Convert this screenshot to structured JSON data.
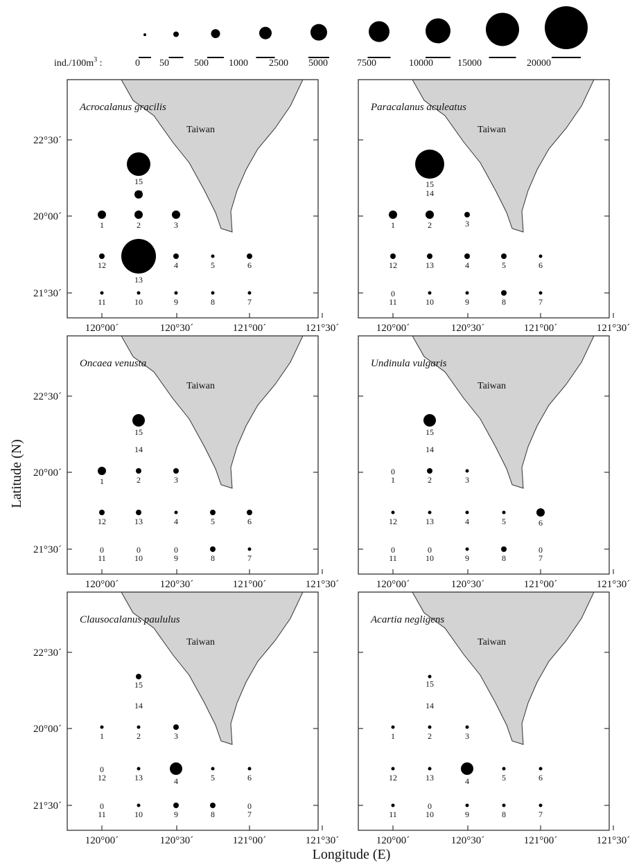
{
  "chart_data": {
    "type": "scatter",
    "legend": {
      "unit_label": "ind./100m",
      "unit_superscript": "3",
      "separator": ":",
      "bin_labels": [
        "0",
        "50",
        "500",
        "1000",
        "2500",
        "5000",
        "7500",
        "10000",
        "15000",
        "20000"
      ]
    },
    "axes": {
      "xlabel": "Longitude (E)",
      "ylabel": "Latitude (N)",
      "x_ticks": [
        "120°00´",
        "120°30´",
        "121°00´",
        "121°30´"
      ],
      "y_ticks": [
        "22°30´",
        "20°00´",
        "21°30´"
      ]
    },
    "land_label": "Taiwan",
    "stations": [
      {
        "id": "1",
        "col": 1,
        "row": 2
      },
      {
        "id": "2",
        "col": 2,
        "row": 2
      },
      {
        "id": "3",
        "col": 3,
        "row": 2
      },
      {
        "id": "4",
        "col": 3,
        "row": 3
      },
      {
        "id": "5",
        "col": 4,
        "row": 3
      },
      {
        "id": "6",
        "col": 5,
        "row": 3
      },
      {
        "id": "7",
        "col": 5,
        "row": 4
      },
      {
        "id": "8",
        "col": 4,
        "row": 4
      },
      {
        "id": "9",
        "col": 3,
        "row": 4
      },
      {
        "id": "10",
        "col": 2,
        "row": 4
      },
      {
        "id": "11",
        "col": 1,
        "row": 4
      },
      {
        "id": "12",
        "col": 1,
        "row": 3
      },
      {
        "id": "13",
        "col": 2,
        "row": 3
      },
      {
        "id": "14",
        "col": 2,
        "row": 1.6
      },
      {
        "id": "15",
        "col": 2,
        "row": 1
      }
    ],
    "panels": [
      {
        "species": "Acrocalanus gracilis",
        "values": {
          "1": 3,
          "2": 3,
          "3": 3,
          "4": 2,
          "5": 1,
          "6": 2,
          "7": 1,
          "8": 1,
          "9": 1,
          "10": 1,
          "11": 1,
          "12": 2,
          "13": 9,
          "14": 3,
          "15": 7
        }
      },
      {
        "species": "Paracalanus aculeatus",
        "values": {
          "1": 3,
          "2": 3,
          "3": 2,
          "4": 2,
          "5": 2,
          "6": 1,
          "7": 1,
          "8": 2,
          "9": 1,
          "10": 1,
          "11": 0,
          "12": 2,
          "13": 2,
          "14": 0,
          "15": 8
        }
      },
      {
        "species": "Oncaea venusta",
        "values": {
          "1": 3,
          "2": 2,
          "3": 2,
          "4": 1,
          "5": 2,
          "6": 2,
          "7": 1,
          "8": 2,
          "9": 0,
          "10": 0,
          "11": 0,
          "12": 2,
          "13": 2,
          "14": 0,
          "15": 4
        }
      },
      {
        "species": "Undinula vulgaris",
        "values": {
          "1": 0,
          "2": 2,
          "3": 1,
          "4": 1,
          "5": 1,
          "6": 3,
          "7": 0,
          "8": 2,
          "9": 1,
          "10": 0,
          "11": 0,
          "12": 1,
          "13": 1,
          "14": 0,
          "15": 4
        }
      },
      {
        "species": "Clausocalanus paululus",
        "values": {
          "1": 1,
          "2": 1,
          "3": 2,
          "4": 4,
          "5": 1,
          "6": 1,
          "7": 0,
          "8": 2,
          "9": 2,
          "10": 1,
          "11": 0,
          "12": 0,
          "13": 1,
          "14": 0,
          "15": 2
        }
      },
      {
        "species": "Acartia negligens",
        "values": {
          "1": 1,
          "2": 1,
          "3": 1,
          "4": 4,
          "5": 1,
          "6": 1,
          "7": 1,
          "8": 1,
          "9": 1,
          "10": 0,
          "11": 1,
          "12": 1,
          "13": 1,
          "14": 0,
          "15": 1
        }
      }
    ]
  }
}
